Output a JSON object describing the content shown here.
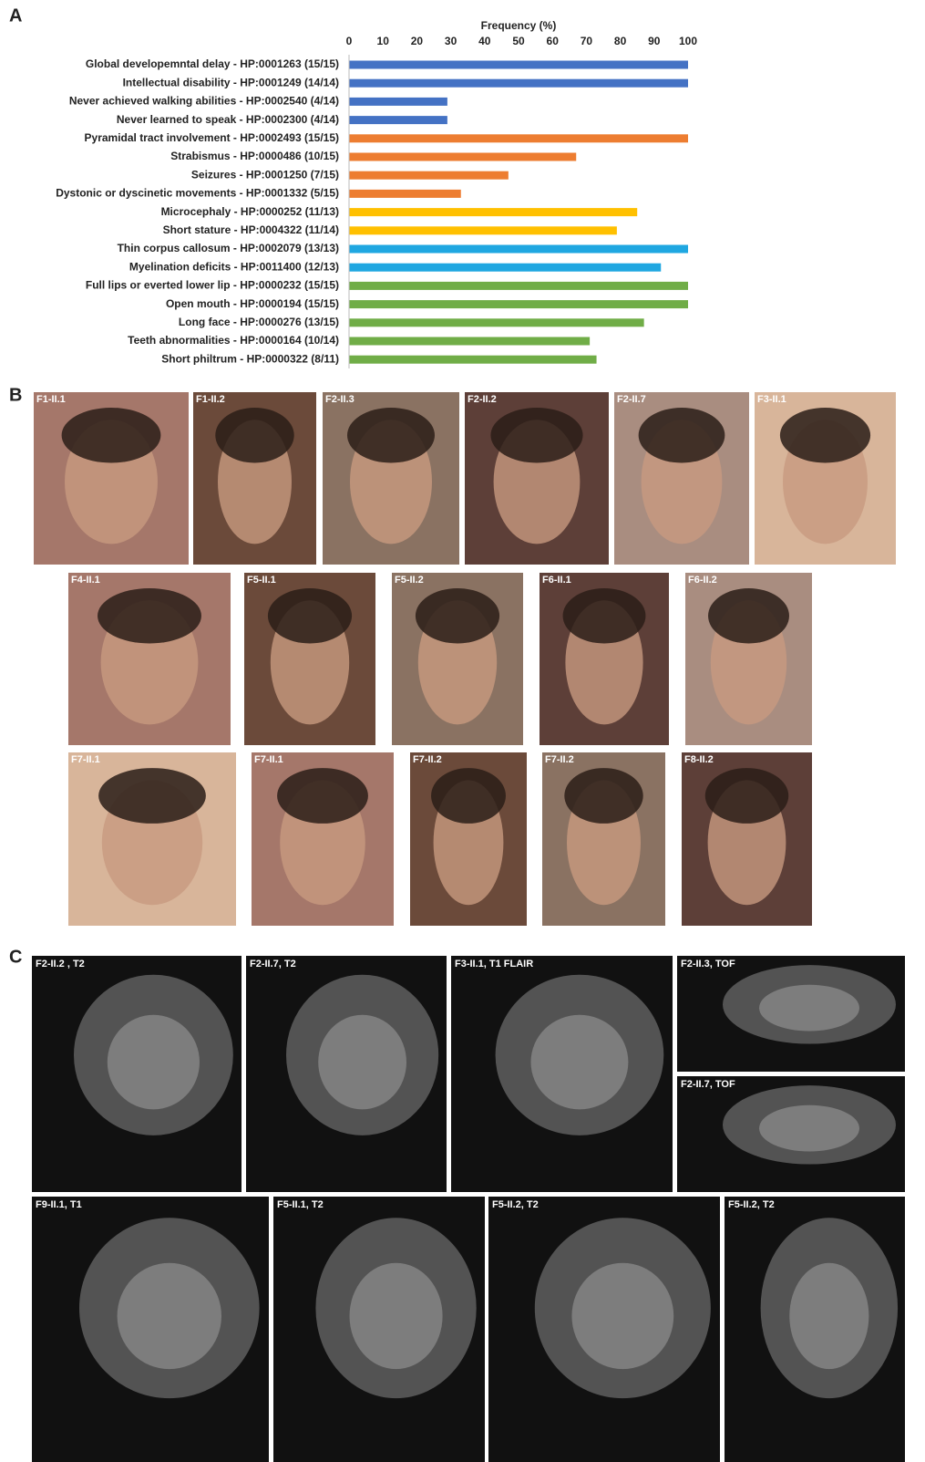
{
  "panel_labels": [
    "A",
    "B",
    "C"
  ],
  "chart_data": {
    "type": "hbar",
    "x_label": "Frequency (%)",
    "categories": [
      "Global developemntal delay - HP:0001263 (15/15)",
      "Intellectual disability - HP:0001249 (14/14)",
      "Never achieved walking abilities - HP:0002540 (4/14)",
      "Never learned to speak - HP:0002300 (4/14)",
      "Pyramidal tract involvement  - HP:0002493 (15/15)",
      "Strabismus - HP:0000486 (10/15)",
      "Seizures - HP:0001250 (7/15)",
      "Dystonic or dyscinetic movements - HP:0001332 (5/15)",
      "Microcephaly - HP:0000252 (11/13)",
      "Short stature - HP:0004322 (11/14)",
      "Thin corpus callosum - HP:0002079 (13/13)",
      "Myelination deficits - HP:0011400 (12/13)",
      "Full lips or everted lower lip - HP:0000232 (15/15)",
      "Open mouth - HP:0000194 (15/15)",
      "Long face - HP:0000276 (13/15)",
      "Teeth abnormalities - HP:0000164 (10/14)",
      "Short philtrum - HP:0000322 (8/11)"
    ],
    "values": [
      100,
      100,
      29,
      29,
      100,
      67,
      47,
      33,
      85,
      79,
      100,
      92,
      100,
      100,
      87,
      71,
      73
    ],
    "colors": [
      "#4472c4",
      "#4472c4",
      "#4472c4",
      "#4472c4",
      "#ed7d31",
      "#ed7d31",
      "#ed7d31",
      "#ed7d31",
      "#ffc000",
      "#ffc000",
      "#1fa7e1",
      "#1fa7e1",
      "#70ad47",
      "#70ad47",
      "#70ad47",
      "#70ad47",
      "#70ad47"
    ],
    "xlim": [
      0,
      100
    ],
    "xticks": [
      0,
      10,
      20,
      30,
      40,
      50,
      60,
      70,
      80,
      90,
      100
    ],
    "grid": false
  },
  "photos": [
    "F1-II.1",
    "F1-II.2",
    "F2-II.3",
    "F2-II.2",
    "F2-II.7",
    "F3-II.1",
    "F4-II.1",
    "F5-II.1",
    "F5-II.2",
    "F6-II.1",
    "F6-II.2",
    "F7-II.1",
    "F7-II.1",
    "F7-II.2",
    "F7-II.2",
    "F8-II.2"
  ],
  "mri": [
    "F2-II.2 , T2",
    "F2-II.7, T2",
    "F3-II.1, T1 FLAIR",
    "F2-II.3, TOF",
    "F2-II.7, TOF",
    "F9-II.1, T1",
    "F5-II.1, T2",
    "F5-II.2, T2",
    "F5-II.2, T2"
  ]
}
